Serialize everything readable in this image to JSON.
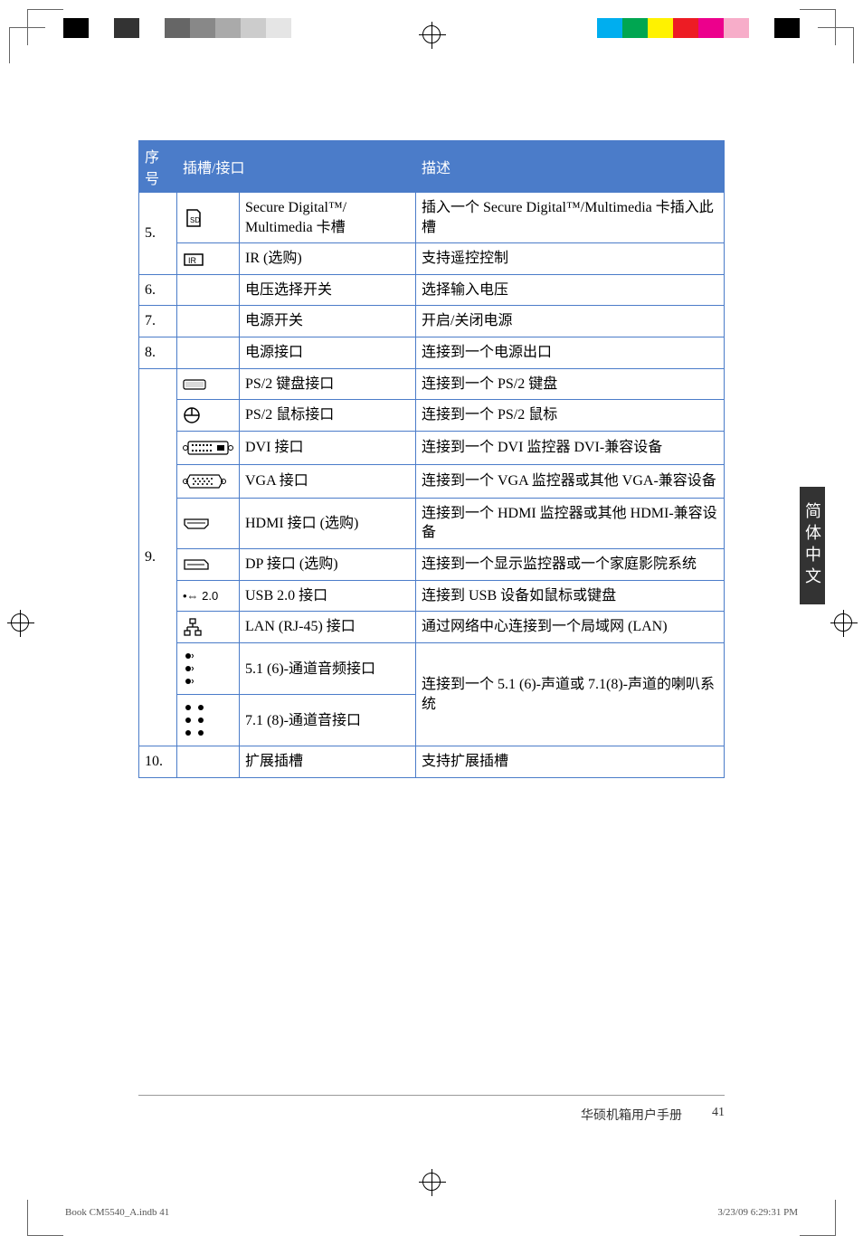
{
  "print": {
    "left_blocks": [
      "#000000",
      "#ffffff",
      "#333333",
      "#ffffff",
      "#666666",
      "#888888",
      "#aaaaaa",
      "#cccccc",
      "#e5e5e5",
      "#ffffff"
    ],
    "right_blocks": [
      "#00aeef",
      "#00a651",
      "#fff200",
      "#ed1c24",
      "#ec008c",
      "#f7adc9",
      "#ffffff",
      "#000000"
    ]
  },
  "table": {
    "headers": {
      "num": "序号",
      "slot": "插槽/接口",
      "desc": "描述"
    },
    "rows": [
      {
        "num": "5.",
        "icon": "sd",
        "slot": "Secure Digital™/ Multimedia 卡槽",
        "desc": "插入一个 Secure Digital™/Multimedia 卡插入此槽"
      },
      {
        "num": "",
        "icon": "ir",
        "slot": "IR (选购)",
        "desc": "支持遥控控制"
      },
      {
        "num": "6.",
        "icon": "",
        "slot": "电压选择开关",
        "desc": "选择输入电压"
      },
      {
        "num": "7.",
        "icon": "",
        "slot": "电源开关",
        "desc": "开启/关闭电源"
      },
      {
        "num": "8.",
        "icon": "",
        "slot": "电源接口",
        "desc": "连接到一个电源出口"
      },
      {
        "num": "",
        "icon": "kb",
        "slot": "PS/2 键盘接口",
        "desc": "连接到一个 PS/2 键盘"
      },
      {
        "num": "",
        "icon": "mouse",
        "slot": "PS/2 鼠标接口",
        "desc": "连接到一个 PS/2 鼠标"
      },
      {
        "num": "",
        "icon": "dvi",
        "slot": "DVI 接口",
        "desc": "连接到一个 DVI 监控器 DVI-兼容设备"
      },
      {
        "num": "",
        "icon": "vga",
        "slot": "VGA 接口",
        "desc": "连接到一个 VGA 监控器或其他 VGA-兼容设备"
      },
      {
        "num": "",
        "icon": "hdmi",
        "slot": "HDMI 接口 (选购)",
        "desc": "连接到一个 HDMI 监控器或其他 HDMI-兼容设备"
      },
      {
        "num": "9.",
        "icon": "dp",
        "slot": "DP 接口 (选购)",
        "desc": "连接到一个显示监控器或一个家庭影院系统"
      },
      {
        "num": "",
        "icon": "usb",
        "slot": "USB 2.0 接口",
        "desc": "连接到 USB 设备如鼠标或键盘"
      },
      {
        "num": "",
        "icon": "lan",
        "slot": "LAN (RJ-45) 接口",
        "desc": "通过网络中心连接到一个局域网 (LAN)"
      },
      {
        "num": "",
        "icon": "audio51",
        "slot": "5.1 (6)-通道音频接口",
        "desc": "连接到一个 5.1 (6)-声道或 7.1(8)-声道的喇叭系统"
      },
      {
        "num": "",
        "icon": "audio71",
        "slot": "7.1 (8)-通道音接口",
        "desc": ""
      },
      {
        "num": "10.",
        "icon": "",
        "slot": "扩展插槽",
        "desc": "支持扩展插槽"
      }
    ]
  },
  "sidetab": "简体中文",
  "footer": {
    "manual": "华硕机箱用户手册",
    "page": "41",
    "book": "Book CM5540_A.indb   41",
    "date": "3/23/09   6:29:31 PM"
  }
}
